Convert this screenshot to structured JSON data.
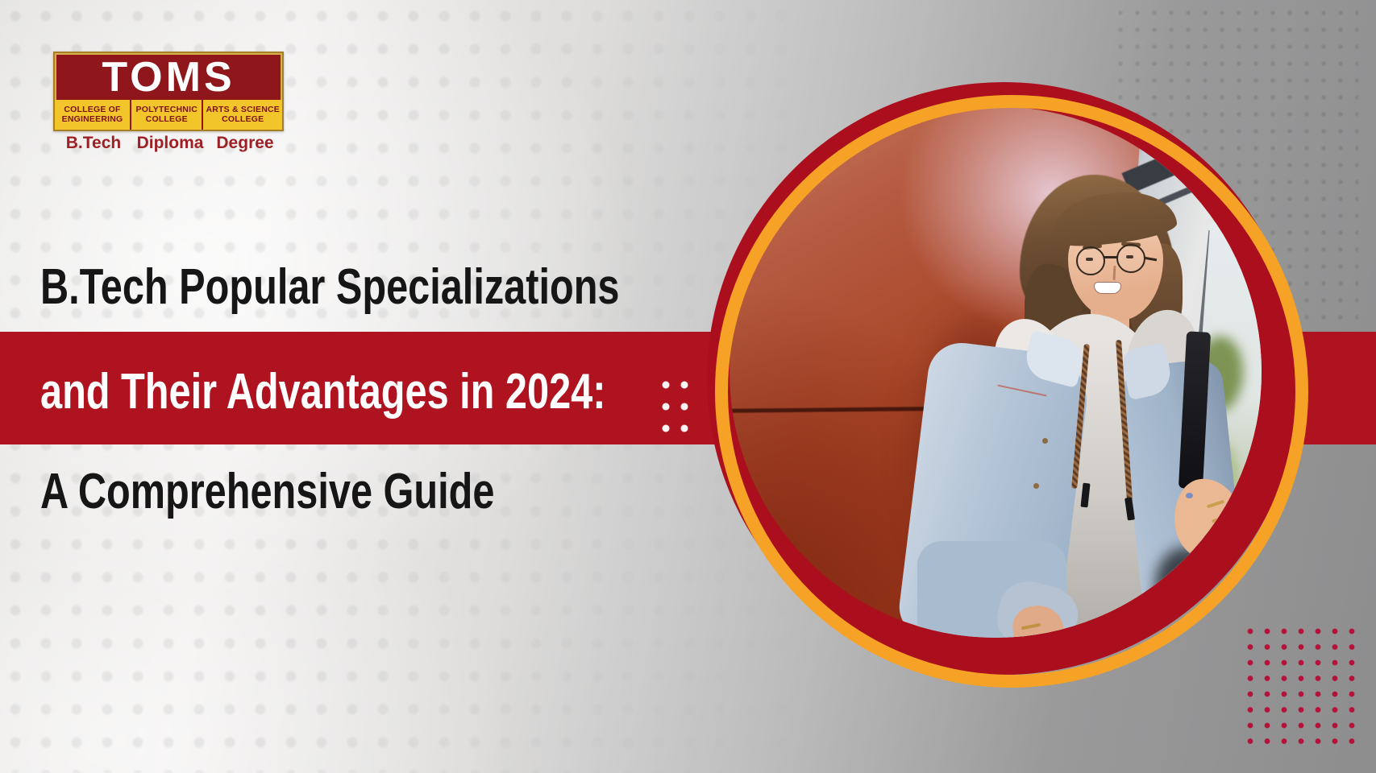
{
  "banner": {
    "title_line1": "B.Tech Popular Specializations",
    "title_line2": "and Their Advantages in 2024:",
    "title_line3": "A Comprehensive Guide"
  },
  "logo": {
    "name": "TOMS",
    "columns": [
      {
        "top": "COLLEGE OF",
        "bottom": "ENGINEERING",
        "program": "B.Tech"
      },
      {
        "top": "POLYTECHNIC",
        "bottom": "COLLEGE",
        "program": "Diploma"
      },
      {
        "top": "ARTS & SCIENCE",
        "bottom": "COLLEGE",
        "program": "Degree"
      }
    ]
  },
  "image": {
    "label": "student-photo"
  },
  "colors": {
    "band_red": "#b01320",
    "ring_crimson": "#ab0f1d",
    "ring_orange": "#f6a226",
    "logo_maroon": "#8f171b",
    "logo_yellow": "#f2c62b",
    "title_black": "#161616",
    "title_white": "#ffffff",
    "dot_crimson": "#b5123a"
  }
}
